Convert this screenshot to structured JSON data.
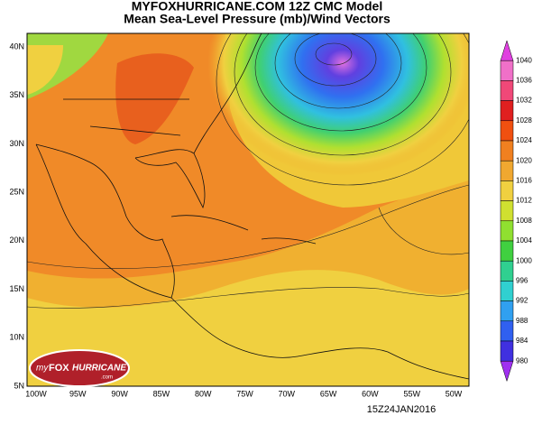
{
  "title": {
    "line1": "MYFOXHURRICANE.COM 12Z CMC Model",
    "line2": "Mean Sea-Level Pressure (mb)/Wind Vectors"
  },
  "latitude_labels": [
    "40N",
    "35N",
    "30N",
    "25N",
    "20N",
    "15N",
    "10N",
    "5N"
  ],
  "longitude_labels": [
    "100W",
    "95W",
    "90W",
    "85W",
    "80W",
    "75W",
    "70W",
    "65W",
    "60W",
    "55W",
    "50W"
  ],
  "colorbar_labels": [
    "1040",
    "1036",
    "1032",
    "1028",
    "1024",
    "1020",
    "1016",
    "1012",
    "1008",
    "1004",
    "1000",
    "996",
    "992",
    "988",
    "984",
    "980"
  ],
  "timestamp": "15Z24JAN2016",
  "logo": {
    "my": "my",
    "fox": "FOX",
    "hurricane": "HURRICANE",
    "com": ".com"
  }
}
